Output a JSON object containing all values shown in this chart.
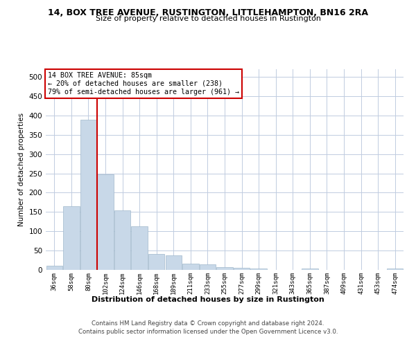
{
  "title": "14, BOX TREE AVENUE, RUSTINGTON, LITTLEHAMPTON, BN16 2RA",
  "subtitle": "Size of property relative to detached houses in Rustington",
  "xlabel": "Distribution of detached houses by size in Rustington",
  "ylabel": "Number of detached properties",
  "categories": [
    "36sqm",
    "58sqm",
    "80sqm",
    "102sqm",
    "124sqm",
    "146sqm",
    "168sqm",
    "189sqm",
    "211sqm",
    "233sqm",
    "255sqm",
    "277sqm",
    "299sqm",
    "321sqm",
    "343sqm",
    "365sqm",
    "387sqm",
    "409sqm",
    "431sqm",
    "453sqm",
    "474sqm"
  ],
  "values": [
    10,
    165,
    390,
    248,
    155,
    113,
    42,
    38,
    17,
    14,
    8,
    6,
    4,
    0,
    0,
    3,
    0,
    0,
    0,
    0,
    4
  ],
  "bar_color": "#c8d8e8",
  "bar_edge_color": "#a0b8cc",
  "red_line_x": 2.5,
  "annotation_title": "14 BOX TREE AVENUE: 85sqm",
  "annotation_line1": "← 20% of detached houses are smaller (238)",
  "annotation_line2": "79% of semi-detached houses are larger (961) →",
  "annotation_box_color": "#ffffff",
  "annotation_border_color": "#cc0000",
  "ylim": [
    0,
    520
  ],
  "yticks": [
    0,
    50,
    100,
    150,
    200,
    250,
    300,
    350,
    400,
    450,
    500
  ],
  "footer1": "Contains HM Land Registry data © Crown copyright and database right 2024.",
  "footer2": "Contains public sector information licensed under the Open Government Licence v3.0.",
  "bg_color": "#ffffff",
  "grid_color": "#c0cce0"
}
